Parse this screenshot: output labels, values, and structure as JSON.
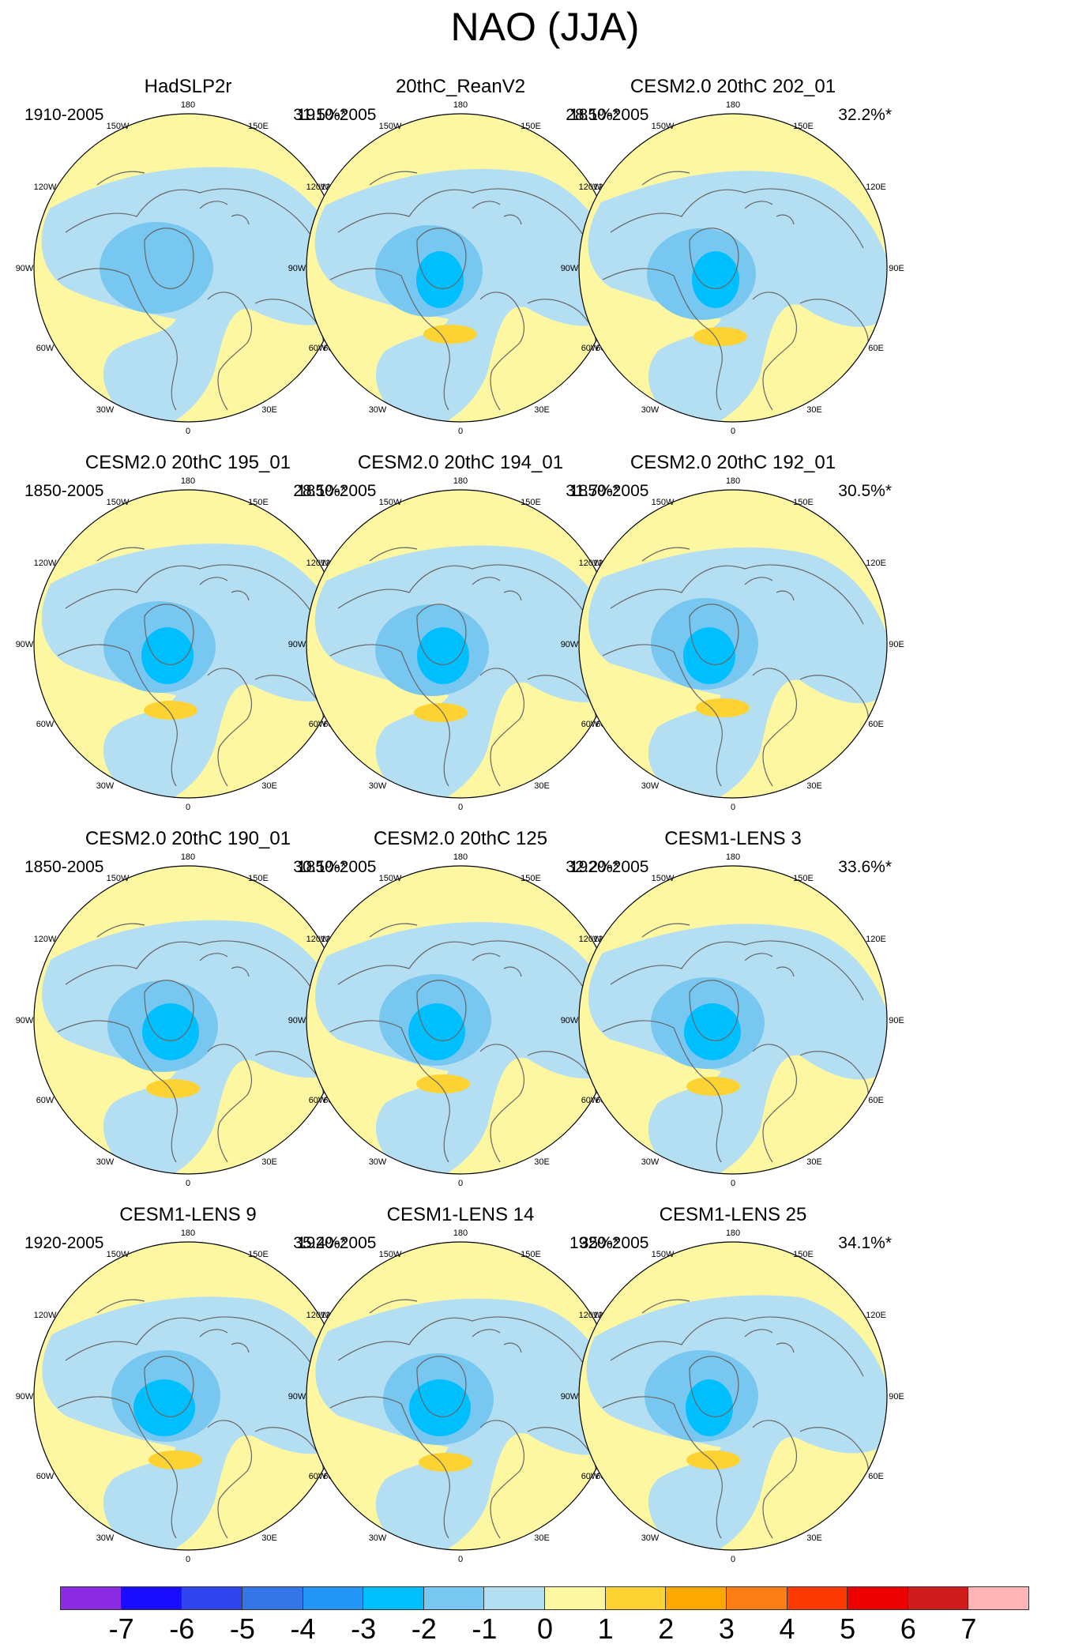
{
  "title": "NAO (JJA)",
  "colors": {
    "neg7": "#8a2be2",
    "neg6": "#1a0dff",
    "neg5": "#3044ee",
    "neg4": "#3476e8",
    "neg3": "#2396f8",
    "neg2": "#00bfff",
    "neg1": "#77c7f0",
    "neg0": "#b4dff3",
    "pos0": "#fdf7a2",
    "pos1": "#fdd333",
    "pos2": "#fba800",
    "pos3": "#fd7e14",
    "pos4": "#fd3a00",
    "pos5": "#ec0000",
    "pos6": "#d01c1c",
    "pos7": "#ffb5b5",
    "coast": "#666666"
  },
  "lon_labels": {
    "top": "180",
    "bottom": "0",
    "l1": "150W",
    "l2": "120W",
    "l3": "90W",
    "l4": "60W",
    "l5": "30W",
    "r1": "150E",
    "r2": "120E",
    "r3": "90E",
    "r4": "60E",
    "r5": "30E"
  },
  "panels": [
    {
      "title": "HadSLP2r",
      "period": "1910-2005",
      "variance": "31.5%*"
    },
    {
      "title": "20thC_ReanV2",
      "period": "1910-2005",
      "variance": "28.1%*"
    },
    {
      "title": "CESM2.0 20thC 202_01",
      "period": "1850-2005",
      "variance": "32.2%*"
    },
    {
      "title": "CESM2.0 20thC 195_01",
      "period": "1850-2005",
      "variance": "28.1%*"
    },
    {
      "title": "CESM2.0 20thC 194_01",
      "period": "1850-2005",
      "variance": "31.7%*"
    },
    {
      "title": "CESM2.0 20thC 192_01",
      "period": "1850-2005",
      "variance": "30.5%*"
    },
    {
      "title": "CESM2.0 20thC 190_01",
      "period": "1850-2005",
      "variance": "30.1%*"
    },
    {
      "title": "CESM2.0 20thC 125",
      "period": "1850-2005",
      "variance": "32.2%*"
    },
    {
      "title": "CESM1-LENS 3",
      "period": "1920-2005",
      "variance": "33.6%*"
    },
    {
      "title": "CESM1-LENS 9",
      "period": "1920-2005",
      "variance": "35.4%*"
    },
    {
      "title": "CESM1-LENS 14",
      "period": "1920-2005",
      "variance": "35%*"
    },
    {
      "title": "CESM1-LENS 25",
      "period": "1920-2005",
      "variance": "34.1%*"
    }
  ],
  "colorbar": {
    "labels": [
      "-7",
      "-6",
      "-5",
      "-4",
      "-3",
      "-2",
      "-1",
      "0",
      "1",
      "2",
      "3",
      "4",
      "5",
      "6",
      "7"
    ],
    "colors": [
      "#8a2be2",
      "#1a0dff",
      "#3044ee",
      "#3476e8",
      "#2396f8",
      "#00bfff",
      "#77c7f0",
      "#b4dff3",
      "#fdf7a2",
      "#fdd333",
      "#fba800",
      "#fd7e14",
      "#fd3a00",
      "#ec0000",
      "#d01c1c",
      "#ffb5b5"
    ]
  }
}
